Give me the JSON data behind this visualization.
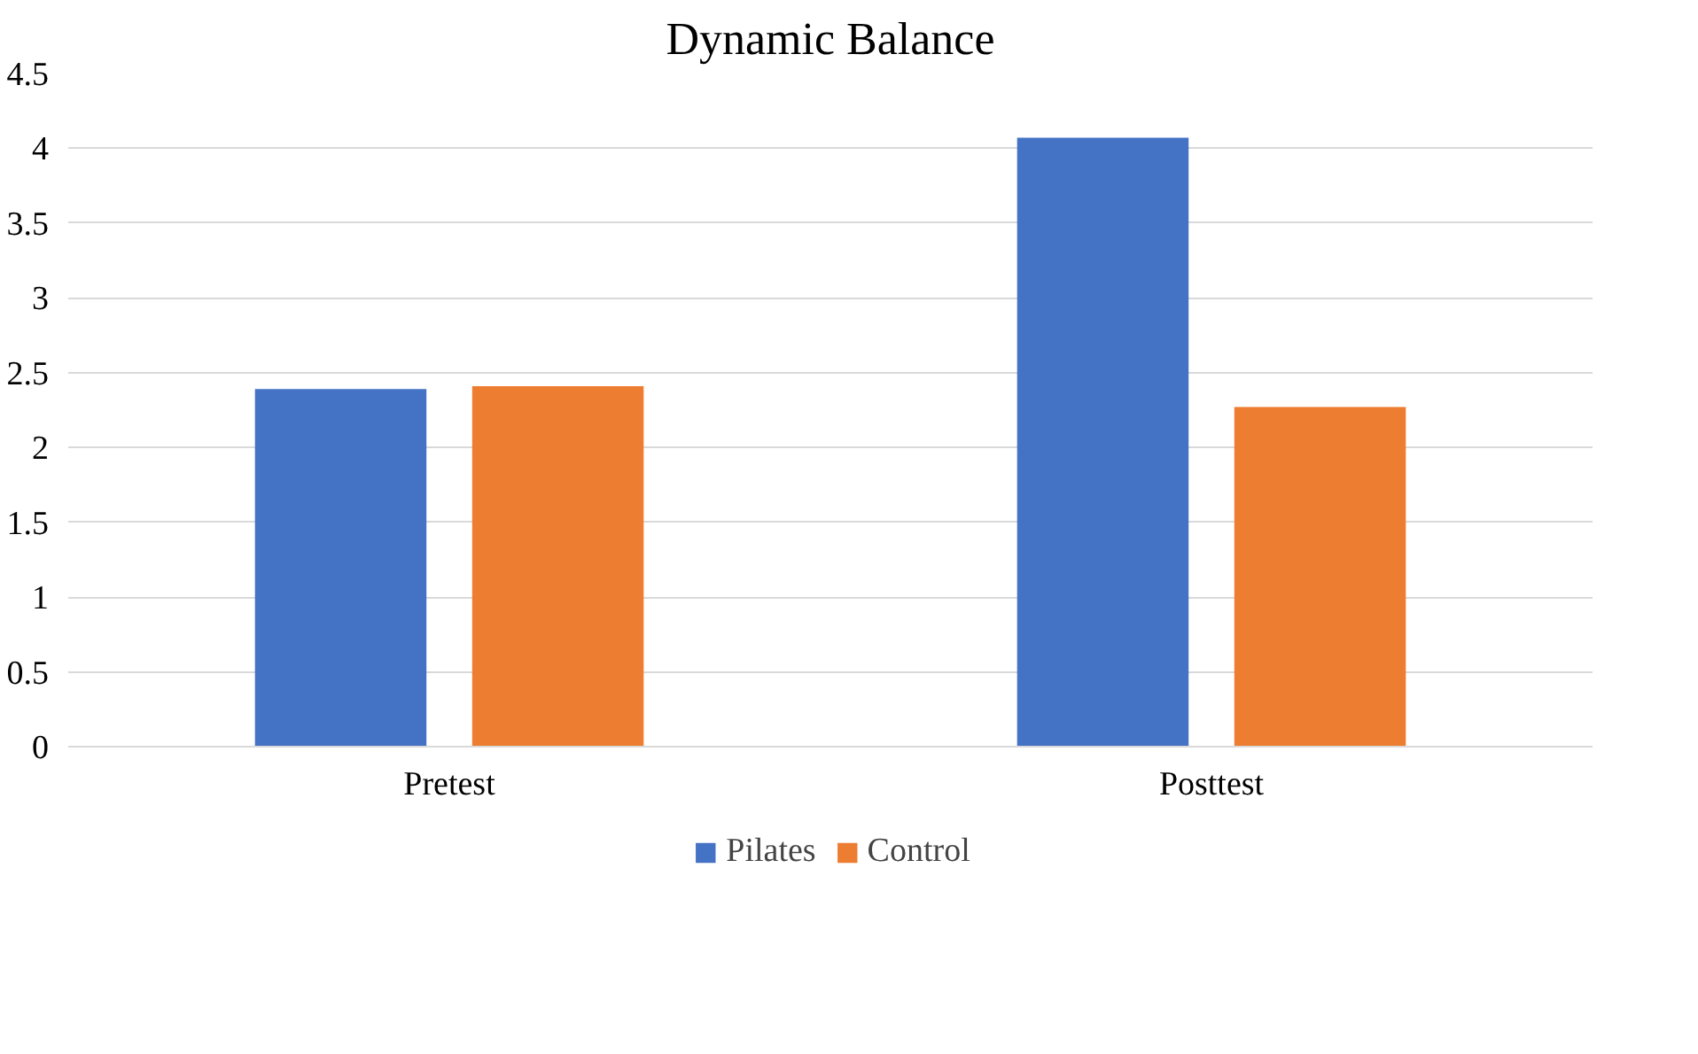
{
  "chart_data": {
    "type": "bar",
    "title": "Dynamic Balance",
    "categories": [
      "Pretest",
      "Posttest"
    ],
    "series": [
      {
        "name": "Pilates",
        "color": "#4472c4",
        "values": [
          2.39,
          4.07
        ]
      },
      {
        "name": "Control",
        "color": "#ed7d31",
        "values": [
          2.41,
          2.27
        ]
      }
    ],
    "ylim": [
      0,
      4.5
    ],
    "yticks": [
      0,
      0.5,
      1,
      1.5,
      2,
      2.5,
      3,
      3.5,
      4,
      4.5
    ],
    "grid": "y",
    "legend": "bottom"
  }
}
